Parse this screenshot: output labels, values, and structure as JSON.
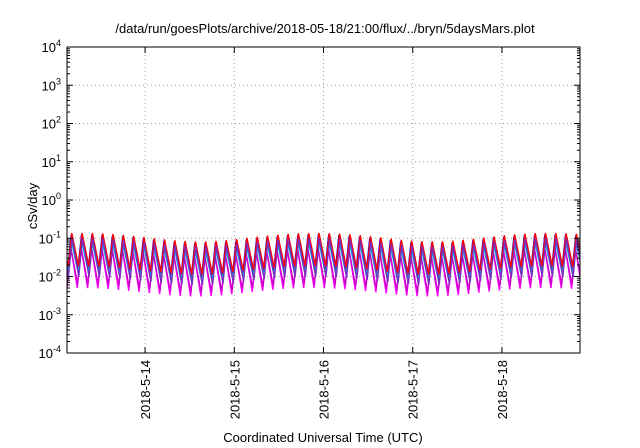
{
  "chart_data": {
    "type": "line",
    "title": "/data/run/goesPlots/archive/2018-05-18/21:00/flux/../bryn/5daysMars.plot",
    "xlabel": "Coordinated Universal Time (UTC)",
    "ylabel": "cSv/day",
    "y_scale": "log",
    "ylim": [
      0.0001,
      10000
    ],
    "y_ticks": [
      {
        "value": 0.0001,
        "base": "10",
        "exp": "-4"
      },
      {
        "value": 0.001,
        "base": "10",
        "exp": "-3"
      },
      {
        "value": 0.01,
        "base": "10",
        "exp": "-2"
      },
      {
        "value": 0.1,
        "base": "10",
        "exp": "-1"
      },
      {
        "value": 1,
        "base": "10",
        "exp": "0"
      },
      {
        "value": 10,
        "base": "10",
        "exp": "1"
      },
      {
        "value": 100,
        "base": "10",
        "exp": "2"
      },
      {
        "value": 1000,
        "base": "10",
        "exp": "3"
      },
      {
        "value": 10000,
        "base": "10",
        "exp": "4"
      }
    ],
    "x_range": [
      "2018-05-13T03:00",
      "2018-05-18T21:00"
    ],
    "x_ticks": [
      {
        "value": "2018-05-14T00:00",
        "label": "2018-5-14"
      },
      {
        "value": "2018-05-15T00:00",
        "label": "2018-5-15"
      },
      {
        "value": "2018-05-16T00:00",
        "label": "2018-5-16"
      },
      {
        "value": "2018-05-17T00:00",
        "label": "2018-5-17"
      },
      {
        "value": "2018-05-18T00:00",
        "label": "2018-5-18"
      }
    ],
    "grid": true,
    "oscillation_period_hours": 2.77,
    "series": [
      {
        "color": "#ff00ff",
        "peak": 0.05,
        "trough": 0.004
      },
      {
        "color": "#cc00cc",
        "peak": 0.045,
        "trough": 0.005
      },
      {
        "color": "#0000ff",
        "peak": 0.1,
        "trough": 0.012
      },
      {
        "color": "#00bcd4",
        "peak": 0.065,
        "trough": 0.01
      },
      {
        "color": "#ff0000",
        "peak": 0.11,
        "trough": 0.015
      },
      {
        "color": "#7b2cbf",
        "peak": 0.08,
        "trough": 0.008
      }
    ]
  }
}
